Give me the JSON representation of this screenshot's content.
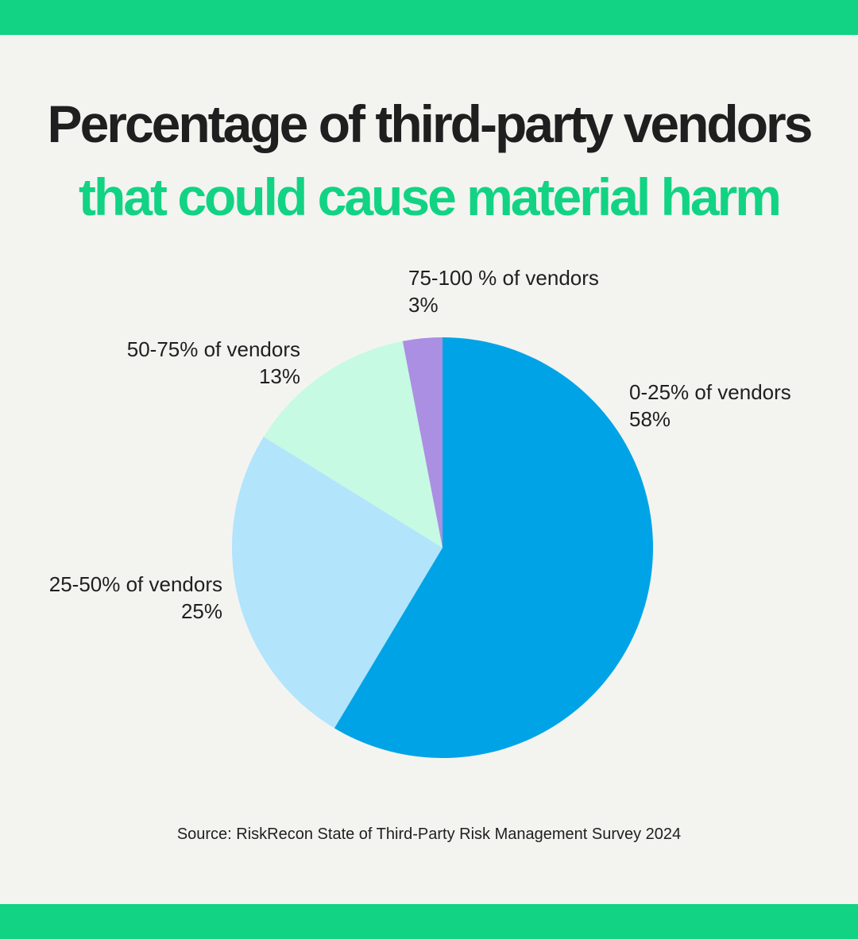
{
  "header": {
    "title_line1": "Percentage of third-party vendors",
    "title_line2": "that could cause material harm"
  },
  "footer": {
    "source": "Source: RiskRecon State of Third-Party Risk Management Survey 2024"
  },
  "colors": {
    "background": "#f3f4f0",
    "accent_green": "#12d383",
    "title_dark": "#1f1f1f"
  },
  "chart_data": {
    "type": "pie",
    "start": "12 o'clock",
    "direction": "clockwise",
    "slices": [
      {
        "label": "0-25% of vendors",
        "pct_label": "58%",
        "value": 58,
        "color": "#00a4e6"
      },
      {
        "label": "25-50% of vendors",
        "pct_label": "25%",
        "value": 25,
        "color": "#b2e4fc"
      },
      {
        "label": "50-75% of vendors",
        "pct_label": "13%",
        "value": 13,
        "color": "#c6fae3"
      },
      {
        "label": "75-100 % of vendors",
        "pct_label": "3%",
        "value": 3,
        "color": "#ab8fe2"
      }
    ]
  }
}
